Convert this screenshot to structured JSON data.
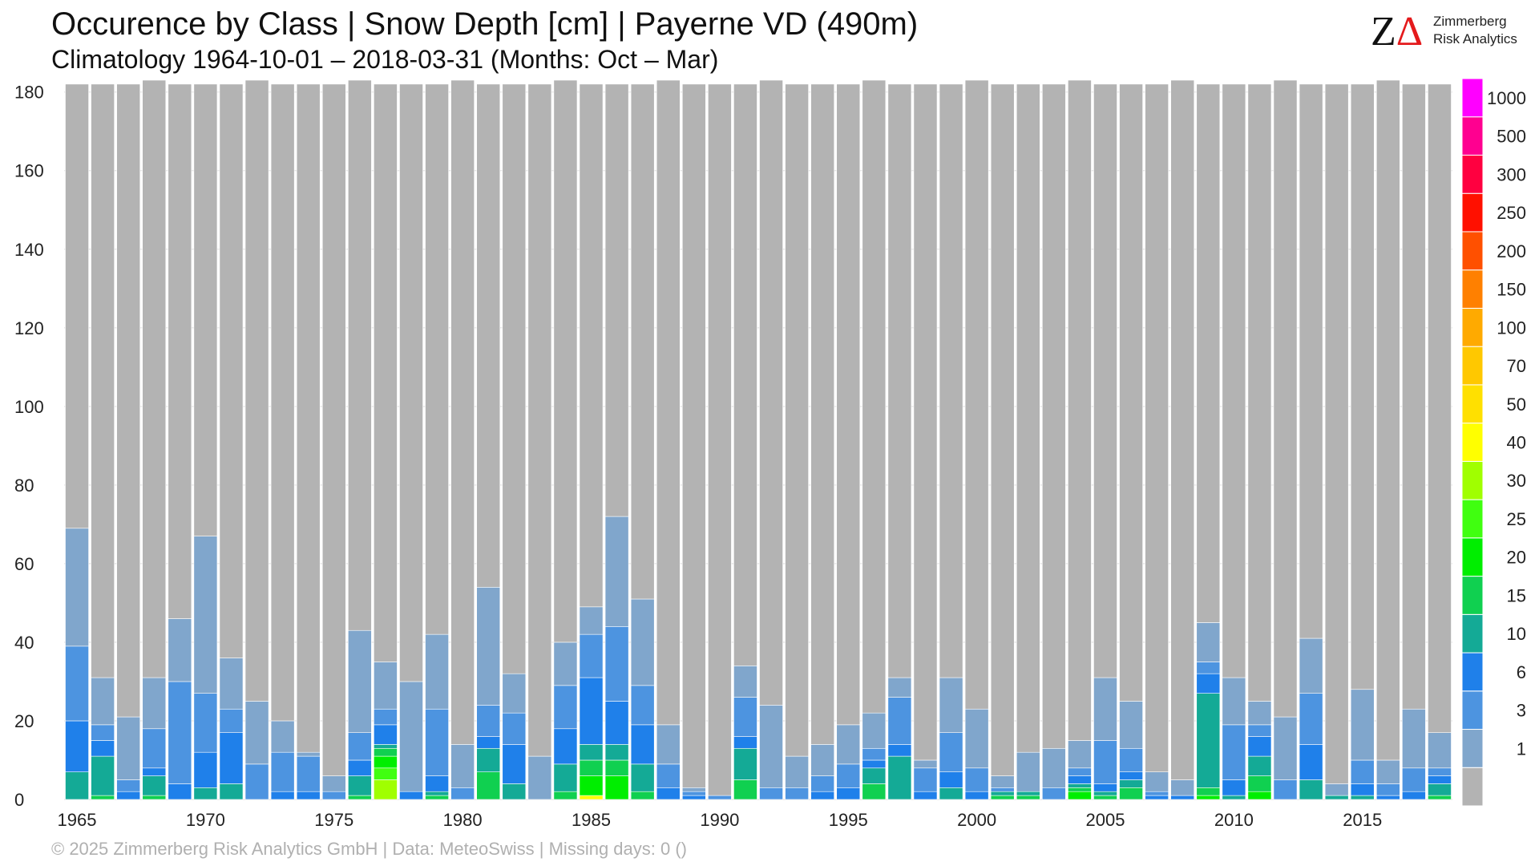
{
  "header": {
    "title": "Occurence by Class | Snow Depth [cm] | Payerne  VD (490m)",
    "subtitle": "Climatology 1964-10-01 – 2018-03-31 (Months: Oct – Mar)"
  },
  "logo": {
    "mark": "ZΔ",
    "line1": "Zimmerberg",
    "line2": "Risk Analytics"
  },
  "footer": {
    "text": "©  2025 Zimmerberg Risk Analytics GmbH | Data: MeteoSwiss | Missing days: 0 ()"
  },
  "chart_data": {
    "type": "bar",
    "stacked": true,
    "ylim": [
      0,
      183
    ],
    "yticks": [
      0,
      20,
      40,
      60,
      80,
      100,
      120,
      140,
      160,
      180
    ],
    "xticks": [
      "1965",
      "1970",
      "1975",
      "1980",
      "1985",
      "1990",
      "1995",
      "2000",
      "2005",
      "2010",
      "2015"
    ],
    "grid": true,
    "legend_placement": "right",
    "classes": [
      {
        "label": "",
        "color": "#b3b3b3"
      },
      {
        "label": "1",
        "color": "#80a6cc"
      },
      {
        "label": "3",
        "color": "#4d94e0"
      },
      {
        "label": "6",
        "color": "#1f80ea"
      },
      {
        "label": "10",
        "color": "#14aa96"
      },
      {
        "label": "15",
        "color": "#10d050"
      },
      {
        "label": "20",
        "color": "#00ee00"
      },
      {
        "label": "25",
        "color": "#40ff10"
      },
      {
        "label": "30",
        "color": "#a0ff00"
      },
      {
        "label": "40",
        "color": "#ffff00"
      },
      {
        "label": "50",
        "color": "#ffe000"
      },
      {
        "label": "70",
        "color": "#ffc800"
      },
      {
        "label": "100",
        "color": "#ffaa00"
      },
      {
        "label": "150",
        "color": "#ff8000"
      },
      {
        "label": "200",
        "color": "#ff5000"
      },
      {
        "label": "250",
        "color": "#ff1000"
      },
      {
        "label": "300",
        "color": "#ff0040"
      },
      {
        "label": "500",
        "color": "#ff0090"
      },
      {
        "label": "1000",
        "color": "#ff00ff"
      }
    ],
    "seasons": [
      {
        "year": 1965,
        "total": 182,
        "counts": [
          113,
          30,
          19,
          13,
          7,
          0,
          0,
          0,
          0,
          0
        ]
      },
      {
        "year": 1966,
        "total": 182,
        "counts": [
          151,
          12,
          4,
          4,
          10,
          1,
          0,
          0,
          0,
          0
        ]
      },
      {
        "year": 1967,
        "total": 182,
        "counts": [
          161,
          16,
          3,
          2,
          0,
          0,
          0,
          0,
          0,
          0
        ]
      },
      {
        "year": 1968,
        "total": 183,
        "counts": [
          152,
          13,
          10,
          2,
          5,
          1,
          0,
          0,
          0,
          0
        ]
      },
      {
        "year": 1969,
        "total": 182,
        "counts": [
          136,
          16,
          26,
          4,
          0,
          0,
          0,
          0,
          0,
          0
        ]
      },
      {
        "year": 1970,
        "total": 182,
        "counts": [
          115,
          40,
          15,
          9,
          3,
          0,
          0,
          0,
          0,
          0
        ]
      },
      {
        "year": 1971,
        "total": 182,
        "counts": [
          146,
          13,
          6,
          13,
          4,
          0,
          0,
          0,
          0,
          0
        ]
      },
      {
        "year": 1972,
        "total": 183,
        "counts": [
          158,
          16,
          9,
          0,
          0,
          0,
          0,
          0,
          0,
          0
        ]
      },
      {
        "year": 1973,
        "total": 182,
        "counts": [
          162,
          8,
          10,
          2,
          0,
          0,
          0,
          0,
          0,
          0
        ]
      },
      {
        "year": 1974,
        "total": 182,
        "counts": [
          170,
          1,
          9,
          2,
          0,
          0,
          0,
          0,
          0,
          0
        ]
      },
      {
        "year": 1975,
        "total": 182,
        "counts": [
          176,
          4,
          2,
          0,
          0,
          0,
          0,
          0,
          0,
          0
        ]
      },
      {
        "year": 1976,
        "total": 183,
        "counts": [
          140,
          26,
          7,
          4,
          5,
          1,
          0,
          0,
          0,
          0
        ]
      },
      {
        "year": 1977,
        "total": 182,
        "counts": [
          147,
          12,
          4,
          5,
          1,
          2,
          3,
          3,
          5,
          0
        ]
      },
      {
        "year": 1978,
        "total": 182,
        "counts": [
          152,
          28,
          0,
          2,
          0,
          0,
          0,
          0,
          0,
          0
        ]
      },
      {
        "year": 1979,
        "total": 182,
        "counts": [
          140,
          19,
          17,
          4,
          1,
          1,
          0,
          0,
          0,
          0
        ]
      },
      {
        "year": 1980,
        "total": 183,
        "counts": [
          169,
          11,
          3,
          0,
          0,
          0,
          0,
          0,
          0,
          0
        ]
      },
      {
        "year": 1981,
        "total": 182,
        "counts": [
          128,
          30,
          8,
          3,
          6,
          7,
          0,
          0,
          0,
          0
        ]
      },
      {
        "year": 1982,
        "total": 182,
        "counts": [
          150,
          10,
          8,
          10,
          4,
          0,
          0,
          0,
          0,
          0
        ]
      },
      {
        "year": 1983,
        "total": 182,
        "counts": [
          171,
          11,
          0,
          0,
          0,
          0,
          0,
          0,
          0,
          0
        ]
      },
      {
        "year": 1984,
        "total": 183,
        "counts": [
          143,
          11,
          11,
          9,
          7,
          2,
          0,
          0,
          0,
          0
        ]
      },
      {
        "year": 1985,
        "total": 182,
        "counts": [
          133,
          7,
          11,
          17,
          4,
          4,
          5,
          0,
          0,
          1
        ]
      },
      {
        "year": 1986,
        "total": 182,
        "counts": [
          110,
          28,
          19,
          11,
          4,
          4,
          6,
          0,
          0,
          0
        ]
      },
      {
        "year": 1987,
        "total": 182,
        "counts": [
          131,
          22,
          10,
          10,
          7,
          2,
          0,
          0,
          0,
          0
        ]
      },
      {
        "year": 1988,
        "total": 183,
        "counts": [
          164,
          10,
          6,
          3,
          0,
          0,
          0,
          0,
          0,
          0
        ]
      },
      {
        "year": 1989,
        "total": 182,
        "counts": [
          179,
          1,
          1,
          1,
          0,
          0,
          0,
          0,
          0,
          0
        ]
      },
      {
        "year": 1990,
        "total": 182,
        "counts": [
          181,
          0,
          1,
          0,
          0,
          0,
          0,
          0,
          0,
          0
        ]
      },
      {
        "year": 1991,
        "total": 182,
        "counts": [
          148,
          8,
          10,
          3,
          8,
          5,
          0,
          0,
          0,
          0
        ]
      },
      {
        "year": 1992,
        "total": 183,
        "counts": [
          159,
          21,
          3,
          0,
          0,
          0,
          0,
          0,
          0,
          0
        ]
      },
      {
        "year": 1993,
        "total": 182,
        "counts": [
          171,
          8,
          3,
          0,
          0,
          0,
          0,
          0,
          0,
          0
        ]
      },
      {
        "year": 1994,
        "total": 182,
        "counts": [
          168,
          8,
          4,
          2,
          0,
          0,
          0,
          0,
          0,
          0
        ]
      },
      {
        "year": 1995,
        "total": 182,
        "counts": [
          163,
          10,
          6,
          3,
          0,
          0,
          0,
          0,
          0,
          0
        ]
      },
      {
        "year": 1996,
        "total": 183,
        "counts": [
          161,
          9,
          3,
          2,
          4,
          4,
          0,
          0,
          0,
          0
        ]
      },
      {
        "year": 1997,
        "total": 182,
        "counts": [
          151,
          5,
          12,
          3,
          11,
          0,
          0,
          0,
          0,
          0
        ]
      },
      {
        "year": 1998,
        "total": 182,
        "counts": [
          172,
          2,
          6,
          2,
          0,
          0,
          0,
          0,
          0,
          0
        ]
      },
      {
        "year": 1999,
        "total": 182,
        "counts": [
          151,
          14,
          10,
          4,
          3,
          0,
          0,
          0,
          0,
          0
        ]
      },
      {
        "year": 2000,
        "total": 183,
        "counts": [
          160,
          15,
          6,
          2,
          0,
          0,
          0,
          0,
          0,
          0
        ]
      },
      {
        "year": 2001,
        "total": 182,
        "counts": [
          176,
          3,
          1,
          0,
          1,
          1,
          0,
          0,
          0,
          0
        ]
      },
      {
        "year": 2002,
        "total": 182,
        "counts": [
          170,
          10,
          0,
          0,
          1,
          1,
          0,
          0,
          0,
          0
        ]
      },
      {
        "year": 2003,
        "total": 182,
        "counts": [
          169,
          10,
          3,
          0,
          0,
          0,
          0,
          0,
          0,
          0
        ]
      },
      {
        "year": 2004,
        "total": 183,
        "counts": [
          168,
          7,
          2,
          2,
          1,
          1,
          2,
          0,
          0,
          0
        ]
      },
      {
        "year": 2005,
        "total": 182,
        "counts": [
          151,
          16,
          11,
          2,
          1,
          1,
          0,
          0,
          0,
          0
        ]
      },
      {
        "year": 2006,
        "total": 182,
        "counts": [
          157,
          12,
          6,
          2,
          2,
          3,
          0,
          0,
          0,
          0
        ]
      },
      {
        "year": 2007,
        "total": 182,
        "counts": [
          175,
          5,
          1,
          1,
          0,
          0,
          0,
          0,
          0,
          0
        ]
      },
      {
        "year": 2008,
        "total": 183,
        "counts": [
          178,
          4,
          0,
          1,
          0,
          0,
          0,
          0,
          0,
          0
        ]
      },
      {
        "year": 2009,
        "total": 182,
        "counts": [
          137,
          10,
          3,
          5,
          24,
          2,
          1,
          0,
          0,
          0
        ]
      },
      {
        "year": 2010,
        "total": 182,
        "counts": [
          151,
          12,
          14,
          4,
          1,
          0,
          0,
          0,
          0,
          0
        ]
      },
      {
        "year": 2011,
        "total": 182,
        "counts": [
          157,
          6,
          3,
          5,
          5,
          4,
          2,
          0,
          0,
          0
        ]
      },
      {
        "year": 2012,
        "total": 183,
        "counts": [
          162,
          16,
          5,
          0,
          0,
          0,
          0,
          0,
          0,
          0
        ]
      },
      {
        "year": 2013,
        "total": 182,
        "counts": [
          141,
          14,
          13,
          9,
          5,
          0,
          0,
          0,
          0,
          0
        ]
      },
      {
        "year": 2014,
        "total": 182,
        "counts": [
          178,
          3,
          0,
          0,
          1,
          0,
          0,
          0,
          0,
          0
        ]
      },
      {
        "year": 2015,
        "total": 182,
        "counts": [
          154,
          18,
          6,
          3,
          1,
          0,
          0,
          0,
          0,
          0
        ]
      },
      {
        "year": 2016,
        "total": 183,
        "counts": [
          173,
          6,
          3,
          1,
          0,
          0,
          0,
          0,
          0,
          0
        ]
      },
      {
        "year": 2017,
        "total": 182,
        "counts": [
          159,
          15,
          6,
          2,
          0,
          0,
          0,
          0,
          0,
          0
        ]
      },
      {
        "year": 2018,
        "total": 182,
        "counts": [
          165,
          9,
          2,
          2,
          3,
          1,
          0,
          0,
          0,
          0
        ]
      }
    ]
  }
}
